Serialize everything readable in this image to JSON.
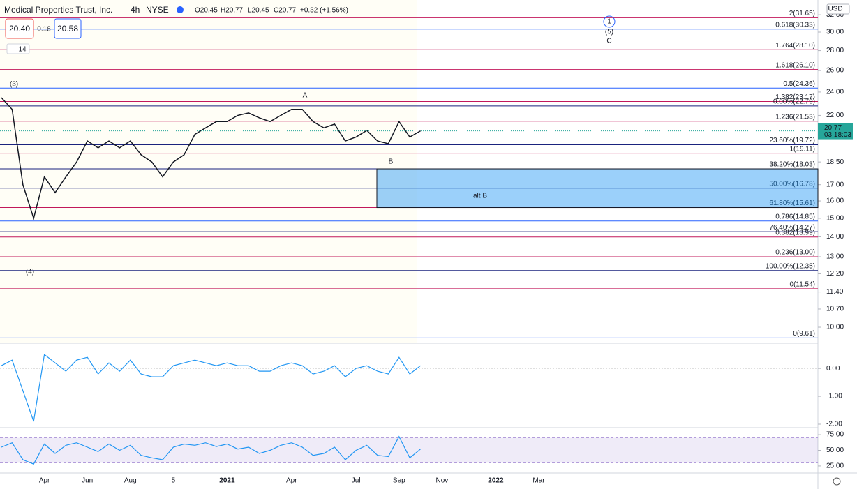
{
  "header": {
    "symbol": "Medical Properties Trust, Inc.",
    "interval": "4h",
    "exchange": "NYSE",
    "open": "O20.45",
    "high": "H20.77",
    "low": "L20.45",
    "close": "C20.77",
    "change": "+0.32 (+1.56%)",
    "bid": "20.40",
    "spread": "0.18",
    "ask": "20.58",
    "indicators": "14",
    "currency": "USD",
    "countdown": "03:18:03"
  },
  "chart_data": [
    {
      "type": "line",
      "log_scale": true,
      "color": "#131722",
      "categories": [
        null,
        null,
        null,
        null,
        "Apr",
        null,
        null,
        null,
        "Jun",
        null,
        null,
        null,
        "Aug",
        null,
        null,
        null,
        "5",
        null,
        null,
        null,
        null,
        "2021",
        null,
        null,
        null,
        null,
        null,
        "Apr",
        null,
        null,
        null,
        null,
        null,
        "Jul",
        null,
        null,
        null,
        "Sep",
        null,
        null,
        null,
        "Nov",
        null,
        null,
        null,
        null,
        "2022",
        null,
        null,
        null,
        "Mar"
      ],
      "values": [
        23.5,
        22.5,
        17,
        15,
        17.5,
        16.5,
        17.5,
        18.5,
        20,
        19.5,
        20,
        19.5,
        20,
        19,
        18.5,
        17.5,
        18.5,
        19,
        20.5,
        21,
        21.5,
        21.5,
        22,
        22.2,
        21.8,
        21.5,
        22,
        22.5,
        22.5,
        21.5,
        21,
        21.3,
        20,
        20.3,
        20.8,
        20,
        19.8,
        21.5,
        20.3,
        20.77,
        null,
        null,
        null,
        null,
        null,
        null,
        null,
        null,
        null,
        null,
        null
      ],
      "ylim": [
        9.47,
        32.6
      ],
      "yticks": [
        {
          "value": 32,
          "label": "32.00"
        },
        {
          "value": 30,
          "label": "30.00"
        },
        {
          "value": 28,
          "label": "28.00"
        },
        {
          "value": 26,
          "label": "26.00"
        },
        {
          "value": 24,
          "label": "24.00"
        },
        {
          "value": 22,
          "label": "22.00"
        },
        {
          "value": 18.5,
          "label": "18.50"
        },
        {
          "value": 17,
          "label": "17.00"
        },
        {
          "value": 16,
          "label": "16.00"
        },
        {
          "value": 15,
          "label": "15.00"
        },
        {
          "value": 14,
          "label": "14.00"
        },
        {
          "value": 13,
          "label": "13.00"
        },
        {
          "value": 12.2,
          "label": "12.20"
        },
        {
          "value": 11.4,
          "label": "11.40"
        },
        {
          "value": 10.7,
          "label": "10.70"
        },
        {
          "value": 10,
          "label": "10.00"
        }
      ],
      "last_price": 20.77,
      "levels": [
        {
          "label": "2(31.65)",
          "value": 31.65,
          "color": "#c2185b"
        },
        {
          "label": "0.618(30.33)",
          "value": 30.33,
          "color": "#2962ff"
        },
        {
          "label": "1.764(28.10)",
          "value": 28.1,
          "color": "#c2185b"
        },
        {
          "label": "1.618(26.10)",
          "value": 26.1,
          "color": "#c2185b"
        },
        {
          "label": "0.5(24.36)",
          "value": 24.36,
          "color": "#2962ff"
        },
        {
          "label": "1.382(23.17)",
          "value": 23.17,
          "color": "#c2185b"
        },
        {
          "label": "0.00%(22.79)",
          "value": 22.79,
          "color": "#1a237e"
        },
        {
          "label": "1.236(21.53)",
          "value": 21.53,
          "color": "#c2185b"
        },
        {
          "label": "23.60%(19.72)",
          "value": 19.72,
          "color": "#1a237e"
        },
        {
          "label": "1(19.11)",
          "value": 19.11,
          "color": "#c2185b"
        },
        {
          "label": "38.20%(18.03)",
          "value": 18.03,
          "color": "#1a237e"
        },
        {
          "label": "50.00%(16.78)",
          "value": 16.78,
          "color": "#1a237e"
        },
        {
          "label": "61.80%(15.61)",
          "value": 15.61,
          "color": "#c2185b"
        },
        {
          "label": "0.786(14.85)",
          "value": 14.85,
          "color": "#2962ff"
        },
        {
          "label": "76.40%(14.27)",
          "value": 14.27,
          "color": "#1a237e"
        },
        {
          "label": "0.382(13.99)",
          "value": 13.99,
          "color": "#c2185b"
        },
        {
          "label": "0.236(13.00)",
          "value": 13,
          "color": "#c2185b"
        },
        {
          "label": "100.00%(12.35)",
          "value": 12.35,
          "color": "#1a237e"
        },
        {
          "label": "0(11.54)",
          "value": 11.54,
          "color": "#c2185b"
        },
        {
          "label": "0(9.61)",
          "value": 9.61,
          "color": "#2962ff"
        }
      ],
      "annotations": [
        "(3)",
        "(4)",
        "A",
        "B",
        "1",
        "(5)",
        "C",
        "alt  B"
      ]
    },
    {
      "type": "line",
      "color": "#2196f3",
      "values": [
        0.1,
        0.3,
        -0.8,
        -1.9,
        0.5,
        0.2,
        -0.1,
        0.3,
        0.4,
        -0.2,
        0.2,
        -0.1,
        0.3,
        -0.2,
        -0.3,
        -0.3,
        0.1,
        0.2,
        0.3,
        0.2,
        0.1,
        0.2,
        0.1,
        0.1,
        -0.1,
        -0.1,
        0.1,
        0.2,
        0.1,
        -0.2,
        -0.1,
        0.1,
        -0.3,
        0,
        0.1,
        -0.1,
        -0.2,
        0.4,
        -0.2,
        0.1,
        null,
        null,
        null,
        null,
        null,
        null,
        null,
        null,
        null,
        null,
        null
      ],
      "ylim": [
        -2.1,
        0.83
      ],
      "yticks": [
        {
          "value": 0,
          "label": "0.00"
        },
        {
          "value": -1,
          "label": "-1.00"
        },
        {
          "value": -2,
          "label": "-2.00"
        }
      ]
    },
    {
      "type": "line",
      "color": "#2196f3",
      "band": [
        30,
        70
      ],
      "values": [
        55,
        62,
        35,
        28,
        60,
        45,
        58,
        62,
        55,
        48,
        60,
        50,
        58,
        42,
        38,
        35,
        55,
        60,
        58,
        62,
        56,
        60,
        52,
        55,
        45,
        50,
        58,
        62,
        55,
        42,
        45,
        55,
        35,
        50,
        58,
        42,
        40,
        72,
        38,
        52,
        null,
        null,
        null,
        null,
        null,
        null,
        null,
        null,
        null,
        null,
        null
      ],
      "ylim": [
        16,
        84
      ],
      "yticks": [
        {
          "value": 75,
          "label": "75.00"
        },
        {
          "value": 50,
          "label": "50.00"
        },
        {
          "value": 25,
          "label": "25.00"
        }
      ]
    }
  ]
}
